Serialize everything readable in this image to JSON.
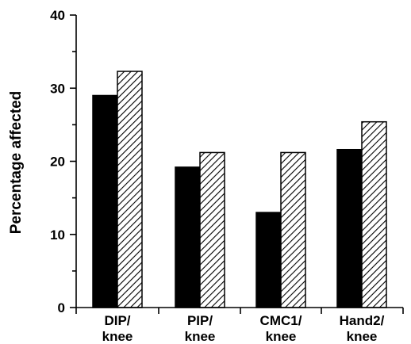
{
  "chart_data": {
    "type": "bar",
    "categories": [
      [
        "DIP/",
        "knee"
      ],
      [
        "PIP/",
        "knee"
      ],
      [
        "CMC1/",
        "knee"
      ],
      [
        "Hand2/",
        "knee"
      ]
    ],
    "series": [
      {
        "fill": "solid",
        "color": "#000000",
        "values": [
          29,
          19.2,
          13,
          21.6
        ]
      },
      {
        "fill": "hatched",
        "color": "#000000",
        "values": [
          32.3,
          21.2,
          21.2,
          25.4
        ]
      }
    ],
    "ylabel": "Percentage affected",
    "ylim": [
      0,
      40
    ],
    "yticks": [
      0,
      10,
      20,
      30,
      40
    ],
    "grid": false
  }
}
